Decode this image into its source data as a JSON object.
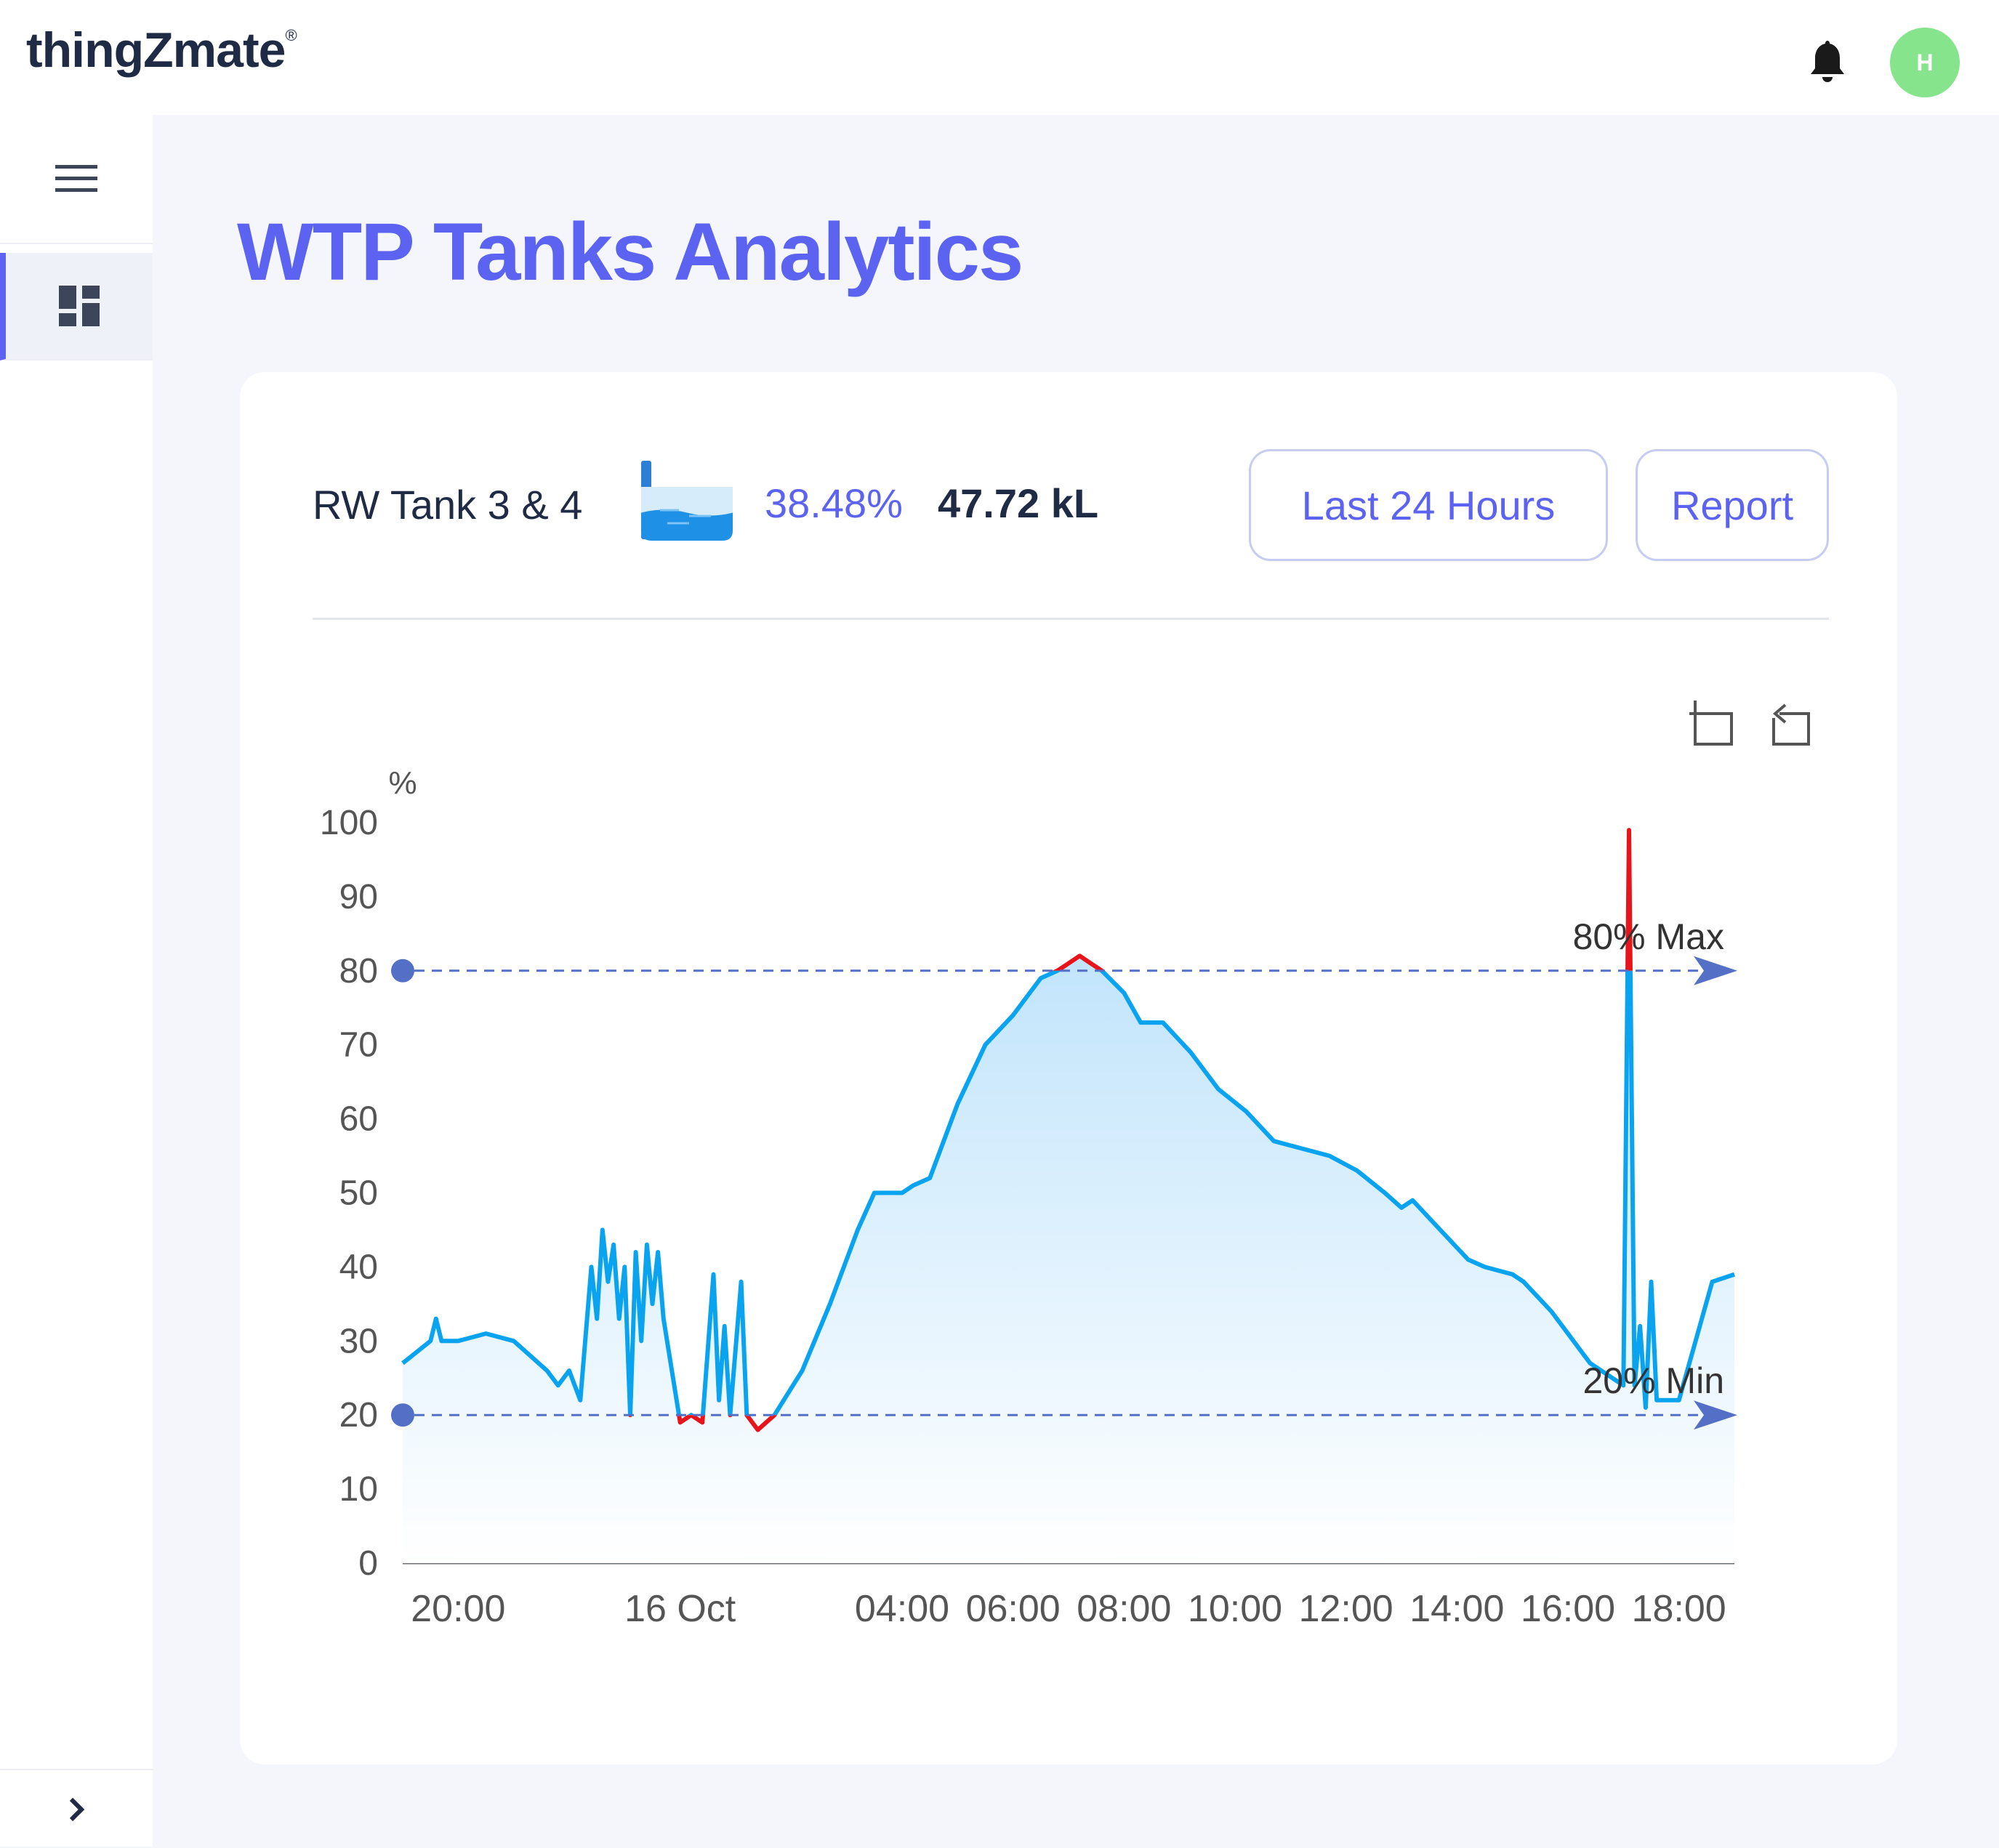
{
  "header": {
    "brand": "thingZmate",
    "brand_mark": "®",
    "avatar_initial": "H"
  },
  "sidebar": {
    "items": [
      {
        "icon": "menu-icon"
      },
      {
        "icon": "dashboard-icon",
        "active": true
      },
      {
        "icon": "chevron-right-icon"
      }
    ]
  },
  "page": {
    "title": "WTP Tanks Analytics"
  },
  "tank": {
    "name": "RW Tank 3 & 4",
    "level_percent": "38.48%",
    "volume": "47.72 kL",
    "fill_fraction": 0.3848
  },
  "controls": {
    "range_label": "Last 24 Hours",
    "report_label": "Report"
  },
  "colors": {
    "accent": "#5b63f0",
    "series": "#0aa3f0",
    "out_of_range": "#e8141b",
    "threshold_line": "#5470c6"
  },
  "chart_data": {
    "type": "area",
    "ylabel": "%",
    "ylim": [
      0,
      100
    ],
    "yticks": [
      "0",
      "10",
      "20",
      "30",
      "40",
      "50",
      "60",
      "70",
      "80",
      "90",
      "100"
    ],
    "xlim": [
      "2024-10-15 19:00",
      "2024-10-16 19:00"
    ],
    "x_tick_labels": [
      {
        "at": "2024-10-15 20:00",
        "label": "20:00"
      },
      {
        "at": "2024-10-16 00:00",
        "label": "16 Oct"
      },
      {
        "at": "2024-10-16 04:00",
        "label": "04:00"
      },
      {
        "at": "2024-10-16 06:00",
        "label": "06:00"
      },
      {
        "at": "2024-10-16 08:00",
        "label": "08:00"
      },
      {
        "at": "2024-10-16 10:00",
        "label": "10:00"
      },
      {
        "at": "2024-10-16 12:00",
        "label": "12:00"
      },
      {
        "at": "2024-10-16 14:00",
        "label": "14:00"
      },
      {
        "at": "2024-10-16 16:00",
        "label": "16:00"
      },
      {
        "at": "2024-10-16 18:00",
        "label": "18:00"
      }
    ],
    "thresholds": [
      {
        "label": "80% Max",
        "value": 80
      },
      {
        "label": "20% Min",
        "value": 20
      }
    ],
    "points": [
      [
        "2024-10-15 19:00",
        27
      ],
      [
        "2024-10-15 19:30",
        30
      ],
      [
        "2024-10-15 19:36",
        33
      ],
      [
        "2024-10-15 19:42",
        30
      ],
      [
        "2024-10-15 20:00",
        30
      ],
      [
        "2024-10-15 20:30",
        31
      ],
      [
        "2024-10-15 21:00",
        30
      ],
      [
        "2024-10-15 21:36",
        26
      ],
      [
        "2024-10-15 21:48",
        24
      ],
      [
        "2024-10-15 22:00",
        26
      ],
      [
        "2024-10-15 22:12",
        22
      ],
      [
        "2024-10-15 22:24",
        40
      ],
      [
        "2024-10-15 22:30",
        33
      ],
      [
        "2024-10-15 22:36",
        45
      ],
      [
        "2024-10-15 22:42",
        38
      ],
      [
        "2024-10-15 22:48",
        43
      ],
      [
        "2024-10-15 22:54",
        33
      ],
      [
        "2024-10-15 23:00",
        40
      ],
      [
        "2024-10-15 23:06",
        20
      ],
      [
        "2024-10-15 23:12",
        42
      ],
      [
        "2024-10-15 23:18",
        30
      ],
      [
        "2024-10-15 23:24",
        43
      ],
      [
        "2024-10-15 23:30",
        35
      ],
      [
        "2024-10-15 23:36",
        42
      ],
      [
        "2024-10-15 23:42",
        33
      ],
      [
        "2024-10-16 00:00",
        19
      ],
      [
        "2024-10-16 00:12",
        20
      ],
      [
        "2024-10-16 00:24",
        19
      ],
      [
        "2024-10-16 00:36",
        39
      ],
      [
        "2024-10-16 00:42",
        22
      ],
      [
        "2024-10-16 00:48",
        32
      ],
      [
        "2024-10-16 00:54",
        20
      ],
      [
        "2024-10-16 01:06",
        38
      ],
      [
        "2024-10-16 01:12",
        20
      ],
      [
        "2024-10-16 01:24",
        18
      ],
      [
        "2024-10-16 01:42",
        20
      ],
      [
        "2024-10-16 02:12",
        26
      ],
      [
        "2024-10-16 02:42",
        35
      ],
      [
        "2024-10-16 03:12",
        45
      ],
      [
        "2024-10-16 03:30",
        50
      ],
      [
        "2024-10-16 04:00",
        50
      ],
      [
        "2024-10-16 04:12",
        51
      ],
      [
        "2024-10-16 04:30",
        52
      ],
      [
        "2024-10-16 05:00",
        62
      ],
      [
        "2024-10-16 05:30",
        70
      ],
      [
        "2024-10-16 06:00",
        74
      ],
      [
        "2024-10-16 06:30",
        79
      ],
      [
        "2024-10-16 06:48",
        80
      ],
      [
        "2024-10-16 07:00",
        81
      ],
      [
        "2024-10-16 07:12",
        82
      ],
      [
        "2024-10-16 07:24",
        81
      ],
      [
        "2024-10-16 07:36",
        80
      ],
      [
        "2024-10-16 08:00",
        77
      ],
      [
        "2024-10-16 08:18",
        73
      ],
      [
        "2024-10-16 08:42",
        73
      ],
      [
        "2024-10-16 09:12",
        69
      ],
      [
        "2024-10-16 09:42",
        64
      ],
      [
        "2024-10-16 10:12",
        61
      ],
      [
        "2024-10-16 10:42",
        57
      ],
      [
        "2024-10-16 11:12",
        56
      ],
      [
        "2024-10-16 11:42",
        55
      ],
      [
        "2024-10-16 12:12",
        53
      ],
      [
        "2024-10-16 12:42",
        50
      ],
      [
        "2024-10-16 13:00",
        48
      ],
      [
        "2024-10-16 13:12",
        49
      ],
      [
        "2024-10-16 13:42",
        45
      ],
      [
        "2024-10-16 14:12",
        41
      ],
      [
        "2024-10-16 14:30",
        40
      ],
      [
        "2024-10-16 15:00",
        39
      ],
      [
        "2024-10-16 15:12",
        38
      ],
      [
        "2024-10-16 15:42",
        34
      ],
      [
        "2024-10-16 16:06",
        30
      ],
      [
        "2024-10-16 16:24",
        27
      ],
      [
        "2024-10-16 17:00",
        24
      ],
      [
        "2024-10-16 17:06",
        99
      ],
      [
        "2024-10-16 17:12",
        24
      ],
      [
        "2024-10-16 17:18",
        32
      ],
      [
        "2024-10-16 17:24",
        21
      ],
      [
        "2024-10-16 17:30",
        38
      ],
      [
        "2024-10-16 17:36",
        22
      ],
      [
        "2024-10-16 18:00",
        22
      ],
      [
        "2024-10-16 18:18",
        30
      ],
      [
        "2024-10-16 18:36",
        38
      ],
      [
        "2024-10-16 19:00",
        39
      ]
    ]
  }
}
